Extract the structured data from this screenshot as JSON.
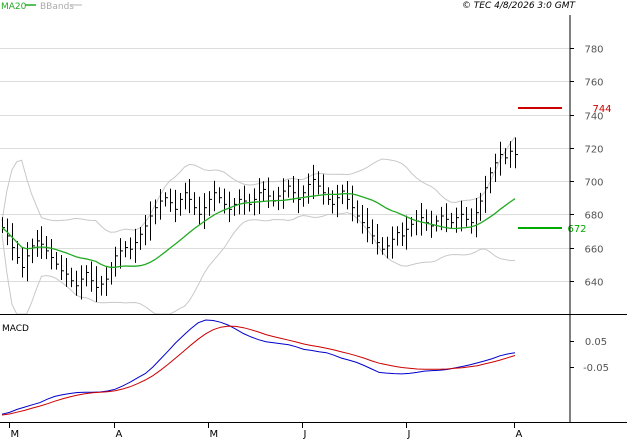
{
  "header": {
    "legend": [
      {
        "label": "MA20",
        "color": "#22aa22"
      },
      {
        "label": "BBands",
        "color": "#aaaaaa"
      }
    ],
    "credit": "© TEC 4/8/2026 3:0 GMT"
  },
  "macd_panel": {
    "label": "MACD"
  },
  "chart_data": [
    {
      "type": "ohlc",
      "x_labels": [
        "M",
        "A",
        "M",
        "J",
        "J",
        "A"
      ],
      "ylim": [
        620,
        800
      ],
      "y_ticks": [
        640,
        660,
        680,
        700,
        720,
        740,
        760,
        780
      ],
      "grid": true,
      "markers": [
        {
          "label": "744",
          "value": 744,
          "color": "#cc0000"
        },
        {
          "label": "672",
          "value": 672,
          "color": "#00aa00"
        }
      ],
      "closes": [
        672,
        667,
        660,
        654,
        648,
        655,
        661,
        664,
        662,
        658,
        654,
        650,
        646,
        644,
        640,
        637,
        641,
        645,
        640,
        636,
        638,
        641,
        648,
        655,
        658,
        660,
        659,
        663,
        668,
        673,
        679,
        684,
        688,
        690,
        687,
        683,
        689,
        693,
        689,
        684,
        680,
        684,
        689,
        693,
        690,
        686,
        683,
        686,
        689,
        688,
        686,
        689,
        693,
        695,
        691,
        688,
        691,
        694,
        697,
        693,
        689,
        693,
        698,
        701,
        697,
        693,
        689,
        686,
        690,
        694,
        689,
        684,
        679,
        675,
        672,
        667,
        663,
        659,
        661,
        665,
        669,
        667,
        671,
        674,
        676,
        678,
        675,
        673,
        676,
        679,
        677,
        675,
        678,
        680,
        677,
        675,
        681,
        688,
        696,
        705,
        711,
        716,
        714,
        718,
        716
      ]
    },
    {
      "type": "line",
      "series": [
        {
          "name": "MACD",
          "color": "#0000cc",
          "values": [
            0.5,
            1.2,
            2.4,
            3.3,
            4.2,
            5.0,
            6.4,
            7.5,
            8.1,
            8.6,
            9.0,
            9.1,
            9.1,
            9.2,
            9.6,
            10.3,
            11.6,
            13.1,
            14.8,
            16.4,
            19.0,
            22.1,
            25.2,
            28.4,
            31.2,
            33.9,
            36.3,
            37.4,
            37.2,
            36.5,
            35.4,
            33.8,
            32.1,
            30.8,
            29.7,
            28.9,
            28.5,
            28.1,
            27.7,
            26.9,
            25.9,
            25.5,
            25.0,
            24.6,
            23.6,
            22.5,
            21.7,
            20.8,
            19.6,
            18.2,
            16.9,
            16.6,
            16.4,
            16.3,
            16.5,
            16.9,
            17.4,
            17.6,
            17.7,
            18.0,
            18.6,
            19.2,
            19.8,
            20.6,
            21.4,
            22.3,
            23.4,
            24.1,
            24.6
          ]
        },
        {
          "name": "Signal",
          "color": "#cc0000",
          "values": [
            0.2,
            0.6,
            1.3,
            2.0,
            2.9,
            3.7,
            4.6,
            5.6,
            6.5,
            7.3,
            8.0,
            8.5,
            8.9,
            9.1,
            9.3,
            9.7,
            10.4,
            11.3,
            12.5,
            13.9,
            15.6,
            17.7,
            20.0,
            22.5,
            25.0,
            27.5,
            29.9,
            32.0,
            33.6,
            34.6,
            35.0,
            34.9,
            34.4,
            33.6,
            32.7,
            31.7,
            30.9,
            30.2,
            29.5,
            28.8,
            28.0,
            27.4,
            26.9,
            26.3,
            25.7,
            24.9,
            24.2,
            23.4,
            22.5,
            21.4,
            20.5,
            19.9,
            19.3,
            18.8,
            18.5,
            18.2,
            18.1,
            18.1,
            18.1,
            18.2,
            18.5,
            18.7,
            19.1,
            19.5,
            20.2,
            20.9,
            21.7,
            22.6,
            23.5
          ]
        }
      ],
      "zero_tick_labels": [
        "0.05",
        "-0.05"
      ]
    }
  ]
}
